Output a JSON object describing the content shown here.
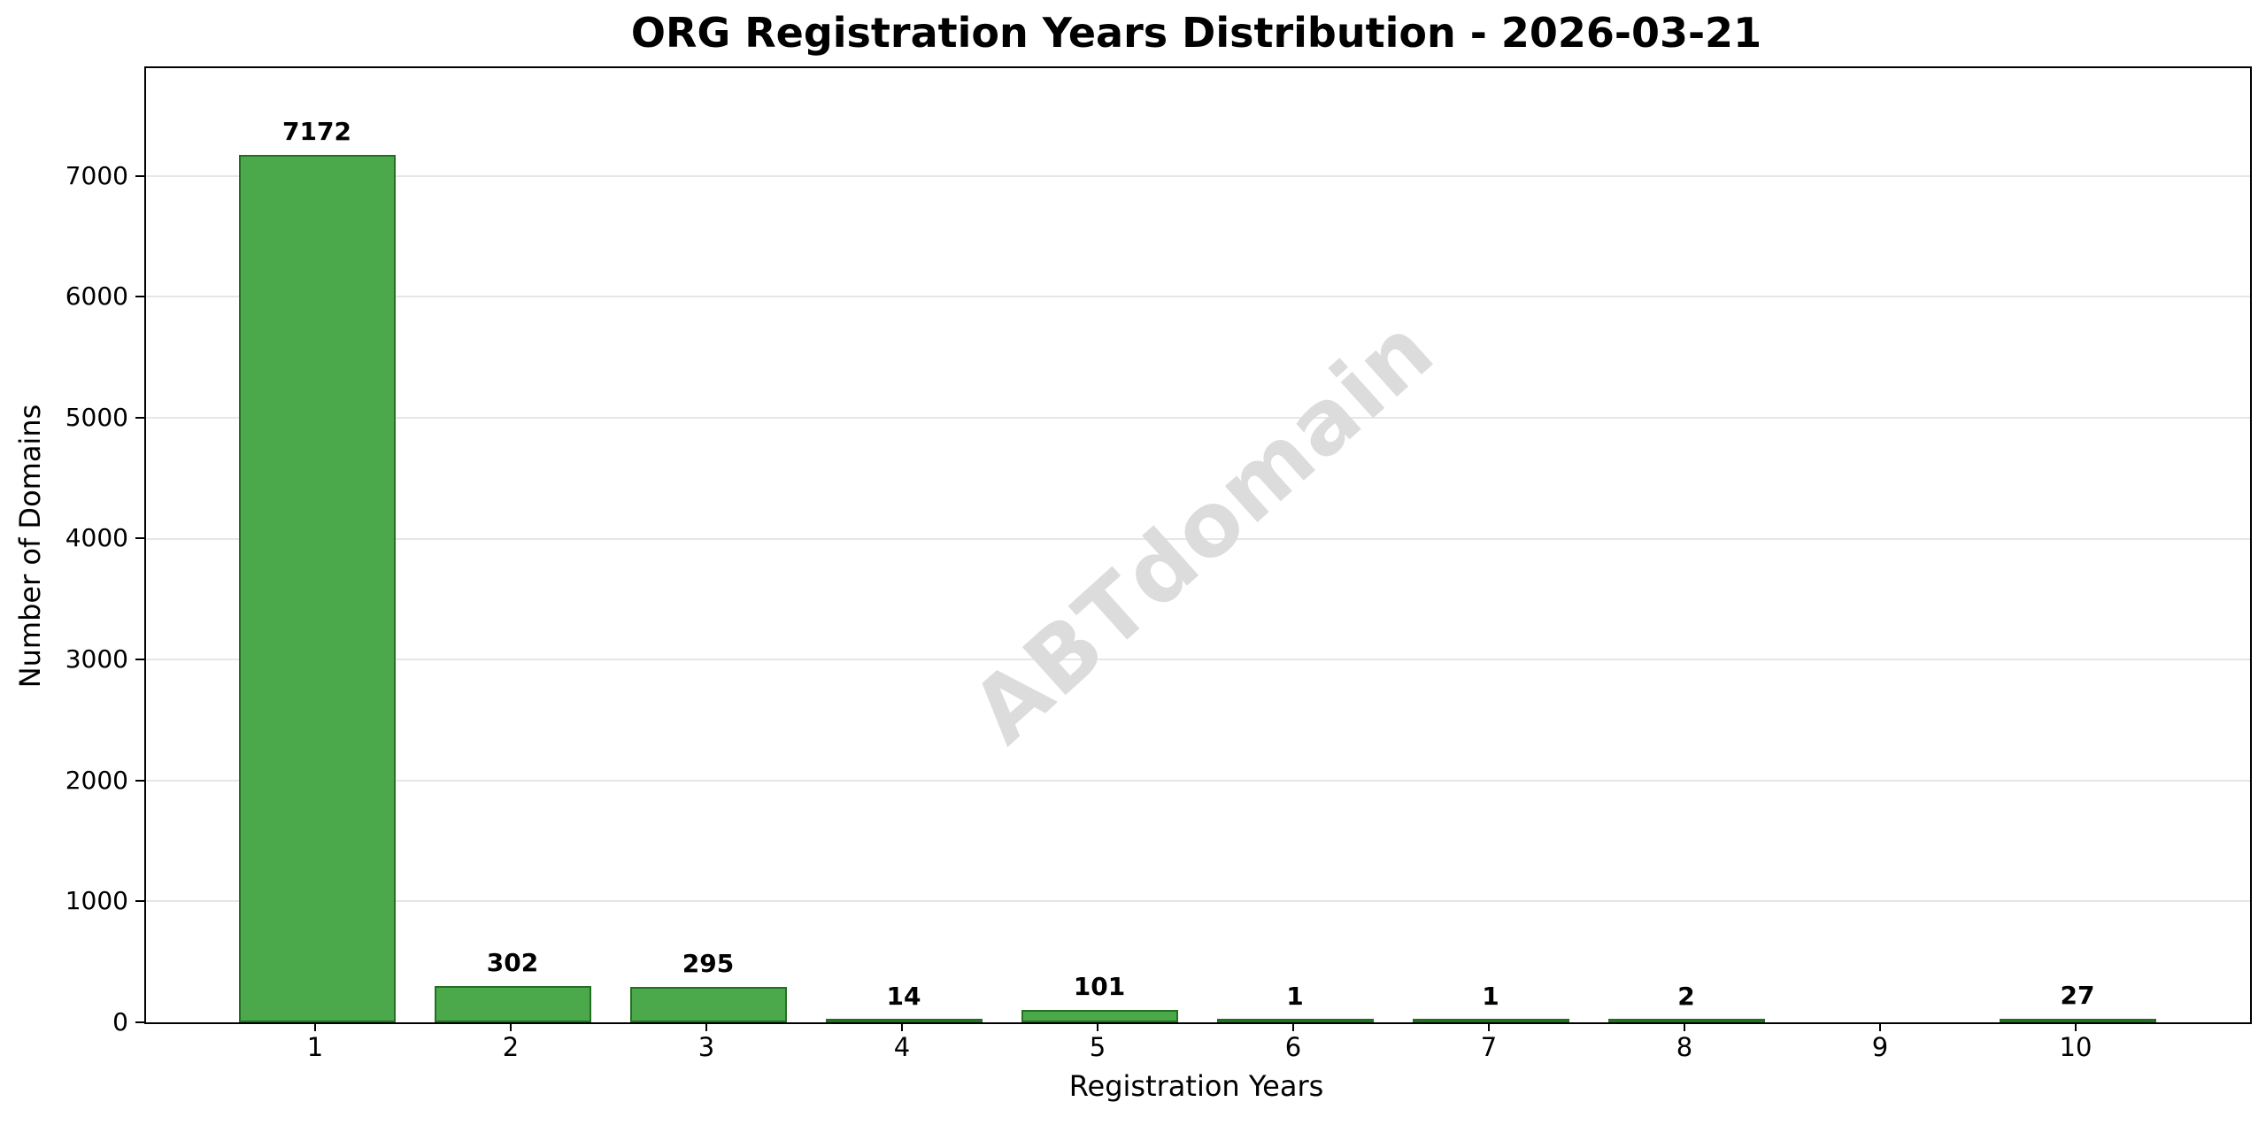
{
  "chart_data": {
    "type": "bar",
    "title": "ORG Registration Years Distribution - 2026-03-21",
    "xlabel": "Registration Years",
    "ylabel": "Number of Domains",
    "categories": [
      "1",
      "2",
      "3",
      "4",
      "5",
      "6",
      "7",
      "8",
      "9",
      "10"
    ],
    "values": [
      7172,
      302,
      295,
      14,
      101,
      1,
      1,
      2,
      0,
      27
    ],
    "bar_labels": [
      "7172",
      "302",
      "295",
      "14",
      "101",
      "1",
      "1",
      "2",
      "",
      "27"
    ],
    "yticks": [
      0,
      1000,
      2000,
      3000,
      4000,
      5000,
      6000,
      7000
    ],
    "ytick_labels": [
      "0",
      "1000",
      "2000",
      "3000",
      "4000",
      "5000",
      "6000",
      "7000"
    ],
    "ylim": [
      0,
      7890
    ],
    "grid": "horizontal",
    "legend_position": "none",
    "watermark": "ABTdomain",
    "colors": {
      "bar_fill": "#4ba94b",
      "bar_edge": "#237023",
      "grid": "#e6e6e6",
      "text": "#000000",
      "watermark": "#dcdcdc",
      "background": "#ffffff"
    }
  }
}
